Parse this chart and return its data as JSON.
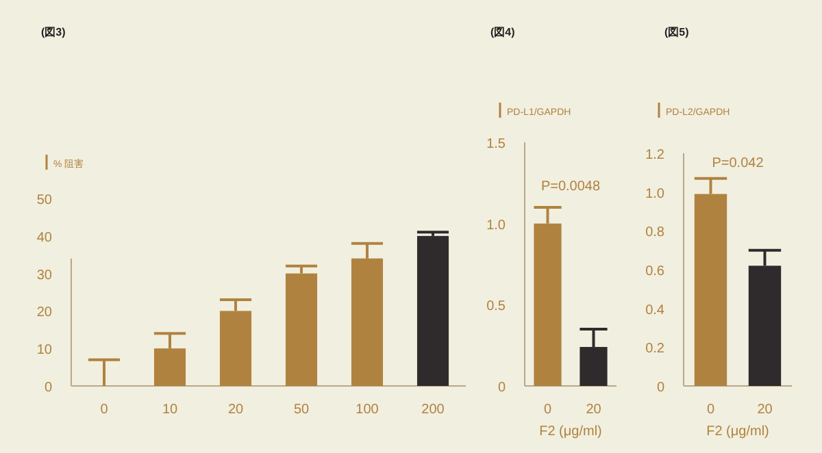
{
  "chart_data": [
    {
      "type": "bar",
      "title": "(図3)",
      "ylabel": "% 阻害",
      "categories": [
        "0",
        "10",
        "20",
        "50",
        "100",
        "200"
      ],
      "values": [
        0,
        10,
        20,
        30,
        34,
        40
      ],
      "colors": [
        "#b08240",
        "#b08240",
        "#b08240",
        "#b08240",
        "#b08240",
        "#2f2a2c"
      ],
      "errors": [
        [
          0,
          7
        ],
        [
          10,
          14
        ],
        [
          20,
          23
        ],
        [
          30,
          32
        ],
        [
          34,
          38
        ],
        [
          40,
          41
        ]
      ],
      "ylim": [
        0,
        50
      ],
      "yticks": [
        0,
        10,
        20,
        30,
        40,
        50
      ]
    },
    {
      "type": "bar",
      "title": "(図4)",
      "ylabel": "PD-L1/GAPDH",
      "xlabel": "F2 (μg/ml)",
      "categories": [
        "0",
        "20"
      ],
      "values": [
        1.0,
        0.24
      ],
      "colors": [
        "#b08240",
        "#2f2a2c"
      ],
      "errors": [
        [
          1.0,
          1.1
        ],
        [
          0.24,
          0.35
        ]
      ],
      "ylim": [
        0,
        1.5
      ],
      "yticks": [
        0,
        0.5,
        {
          "value": 1,
          "label": "1.0"
        },
        1.5
      ],
      "annotations": [
        "P=0.0048"
      ]
    },
    {
      "type": "bar",
      "title": "(図5)",
      "ylabel": "PD-L2/GAPDH",
      "xlabel": "F2 (μg/ml)",
      "categories": [
        "0",
        "20"
      ],
      "values": [
        0.99,
        0.62
      ],
      "colors": [
        "#b08240",
        "#2f2a2c"
      ],
      "errors": [
        [
          0.99,
          1.07
        ],
        [
          0.62,
          0.7
        ]
      ],
      "ylim": [
        0,
        1.2
      ],
      "yticks": [
        0,
        0.2,
        0.4,
        0.6,
        0.8,
        {
          "value": 1,
          "label": "1.0"
        },
        1.2
      ],
      "annotations": [
        "P=0.042"
      ]
    }
  ]
}
